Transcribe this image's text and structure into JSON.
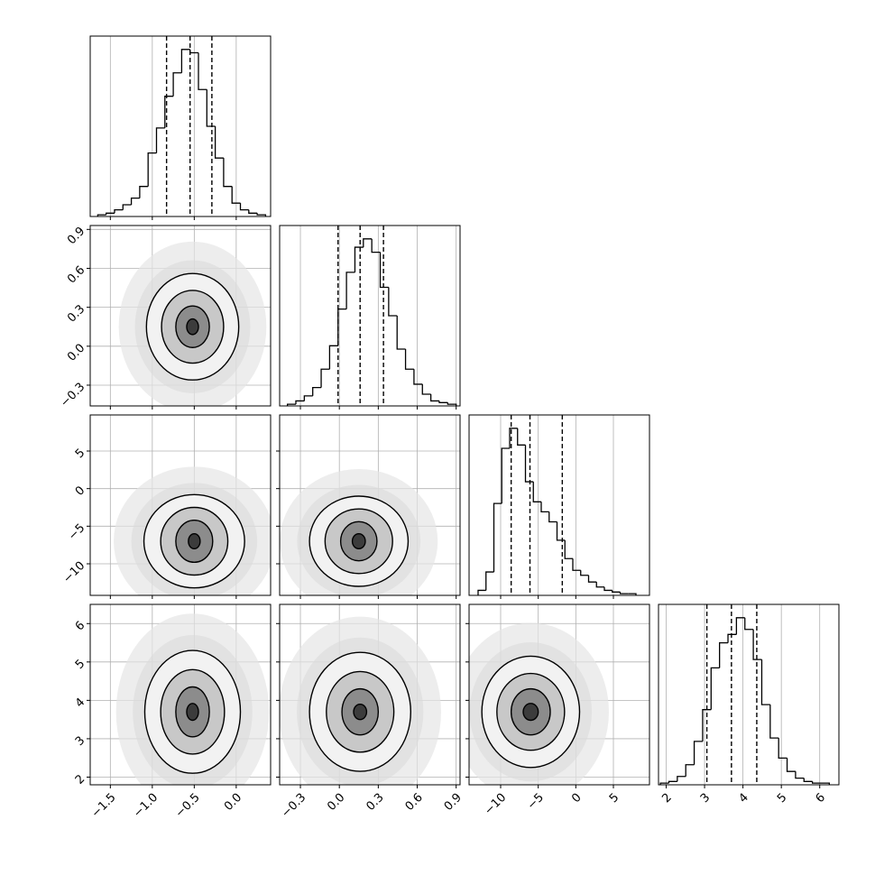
{
  "chart_data": {
    "type": "corner",
    "params": [
      {
        "lim": [
          -1.74,
          0.41
        ],
        "ticks": [
          {
            "value": -1.5,
            "label": "−1.5"
          },
          {
            "value": -1.0,
            "label": "−1.0"
          },
          {
            "value": -0.5,
            "label": "−0.5"
          },
          {
            "value": 0,
            "label": "0.0"
          }
        ],
        "quantiles": [
          -0.83,
          -0.55,
          -0.29
        ],
        "bins": [
          -1.65,
          -1.55,
          -1.45,
          -1.35,
          -1.25,
          -1.15,
          -1.05,
          -0.95,
          -0.85,
          -0.75,
          -0.65,
          -0.55,
          -0.45,
          -0.35,
          -0.25,
          -0.15,
          -0.05,
          0.05,
          0.15,
          0.25,
          0.35
        ],
        "counts": [
          1,
          2,
          4,
          7,
          11,
          18,
          38,
          53,
          72,
          86,
          100,
          98,
          76,
          54,
          35,
          18,
          8,
          4,
          2,
          1
        ],
        "ylim": [
          0,
          108
        ]
      },
      {
        "lim": [
          -0.46,
          0.93
        ],
        "ticks": [
          {
            "value": -0.3,
            "label": "−0.3"
          },
          {
            "value": 0,
            "label": "0.0"
          },
          {
            "value": 0.3,
            "label": "0.3"
          },
          {
            "value": 0.6,
            "label": "0.6"
          },
          {
            "value": 0.9,
            "label": "0.9"
          }
        ],
        "quantiles": [
          -0.01,
          0.16,
          0.34
        ],
        "bins": [
          -0.4,
          -0.335,
          -0.27,
          -0.205,
          -0.14,
          -0.075,
          -0.01,
          0.055,
          0.12,
          0.185,
          0.25,
          0.315,
          0.38,
          0.445,
          0.51,
          0.575,
          0.64,
          0.705,
          0.77,
          0.835,
          0.9
        ],
        "counts": [
          1,
          3,
          6,
          11,
          22,
          36,
          58,
          80,
          95,
          100,
          92,
          71,
          54,
          34,
          22,
          13,
          7,
          3,
          2,
          1
        ],
        "ylim": [
          0,
          108
        ]
      },
      {
        "lim": [
          -14.2,
          9.8
        ],
        "ticks": [
          {
            "value": -10,
            "label": "−10"
          },
          {
            "value": -5,
            "label": "−5"
          },
          0,
          5
        ],
        "quantiles": [
          -8.6,
          -6.1,
          -1.8
        ],
        "bins": [
          -13,
          -11.95,
          -10.9,
          -9.85,
          -8.8,
          -7.75,
          -6.7,
          -5.65,
          -4.6,
          -3.55,
          -2.5,
          -1.45,
          -0.4,
          0.65,
          1.7,
          2.75,
          3.8,
          4.85,
          5.9,
          6.95,
          8.0
        ],
        "counts": [
          3,
          14,
          55,
          88,
          100,
          90,
          68,
          56,
          50,
          44,
          33,
          22,
          15,
          12,
          8,
          5,
          3,
          2,
          1,
          1
        ],
        "ylim": [
          0,
          108
        ]
      },
      {
        "lim": [
          1.8,
          6.5
        ],
        "ticks": [
          2,
          3,
          4,
          5,
          6
        ],
        "quantiles": [
          3.06,
          3.7,
          4.36
        ],
        "bins": [
          1.85,
          2.07,
          2.29,
          2.51,
          2.73,
          2.95,
          3.17,
          3.39,
          3.61,
          3.83,
          4.05,
          4.27,
          4.49,
          4.71,
          4.93,
          5.15,
          5.37,
          5.59,
          5.81,
          6.03,
          6.25
        ],
        "counts": [
          1,
          2,
          5,
          12,
          26,
          45,
          70,
          85,
          90,
          100,
          93,
          75,
          48,
          28,
          16,
          8,
          4,
          2,
          1,
          1
        ],
        "ylim": [
          0,
          108
        ]
      }
    ],
    "panels": [
      {
        "center": [
          -0.52,
          0.15
        ],
        "contours": [
          [
            0.55,
            0.41
          ],
          [
            0.37,
            0.28
          ],
          [
            0.2,
            0.16
          ],
          [
            0.07,
            0.06
          ]
        ]
      },
      {
        "center": [
          -0.5,
          -7
        ],
        "contours": [
          [
            0.6,
            6.2
          ],
          [
            0.4,
            4.5
          ],
          [
            0.22,
            2.8
          ],
          [
            0.07,
            1
          ]
        ]
      },
      {
        "center": [
          0.15,
          -7
        ],
        "contours": [
          [
            0.38,
            6
          ],
          [
            0.26,
            4.3
          ],
          [
            0.14,
            2.6
          ],
          [
            0.05,
            1
          ]
        ]
      },
      {
        "center": [
          -0.52,
          3.7
        ],
        "contours": [
          [
            0.57,
            1.6
          ],
          [
            0.38,
            1.1
          ],
          [
            0.2,
            0.65
          ],
          [
            0.07,
            0.22
          ]
        ]
      },
      {
        "center": [
          0.16,
          3.7
        ],
        "contours": [
          [
            0.39,
            1.55
          ],
          [
            0.26,
            1.05
          ],
          [
            0.14,
            0.6
          ],
          [
            0.05,
            0.2
          ]
        ]
      },
      {
        "center": [
          -6,
          3.7
        ],
        "contours": [
          [
            6.5,
            1.45
          ],
          [
            4.5,
            1.0
          ],
          [
            2.6,
            0.6
          ],
          [
            1,
            0.22
          ]
        ]
      }
    ],
    "grid": true
  }
}
